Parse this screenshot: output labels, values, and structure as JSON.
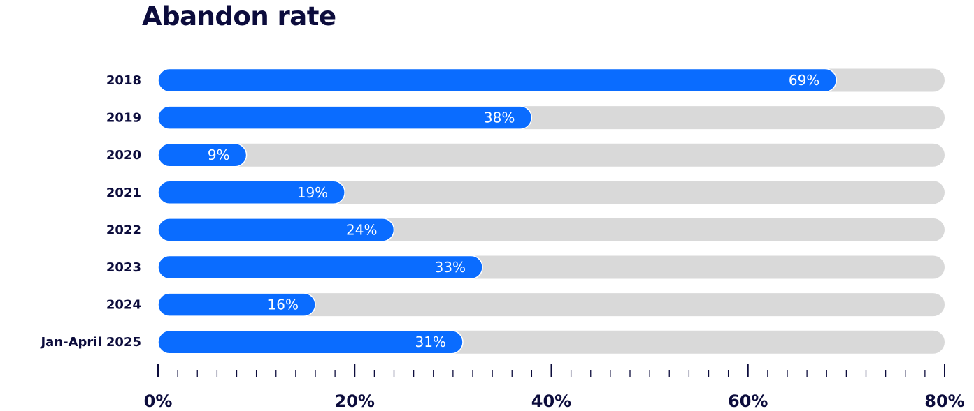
{
  "chart_data": {
    "type": "bar",
    "orientation": "horizontal",
    "title": "Abandon rate",
    "xlabel": "",
    "ylabel": "",
    "categories": [
      "2018",
      "2019",
      "2020",
      "2021",
      "2022",
      "2023",
      "2024",
      "Jan-April 2025"
    ],
    "values": [
      69,
      38,
      9,
      19,
      24,
      33,
      16,
      31
    ],
    "value_labels": [
      "69%",
      "38%",
      "9%",
      "19%",
      "24%",
      "33%",
      "16%",
      "31%"
    ],
    "xlim": [
      0,
      80
    ],
    "ticks": [
      0,
      20,
      40,
      60,
      80
    ],
    "tick_labels": [
      "0%",
      "20%",
      "40%",
      "60%",
      "80%"
    ],
    "minor_ticks_per_major": 10,
    "grid": false,
    "legend": "none",
    "colors": {
      "bar": "#0a6cff",
      "track": "#d9d9d9",
      "text": "#0c0c3c",
      "value_text": "#ffffff"
    }
  }
}
